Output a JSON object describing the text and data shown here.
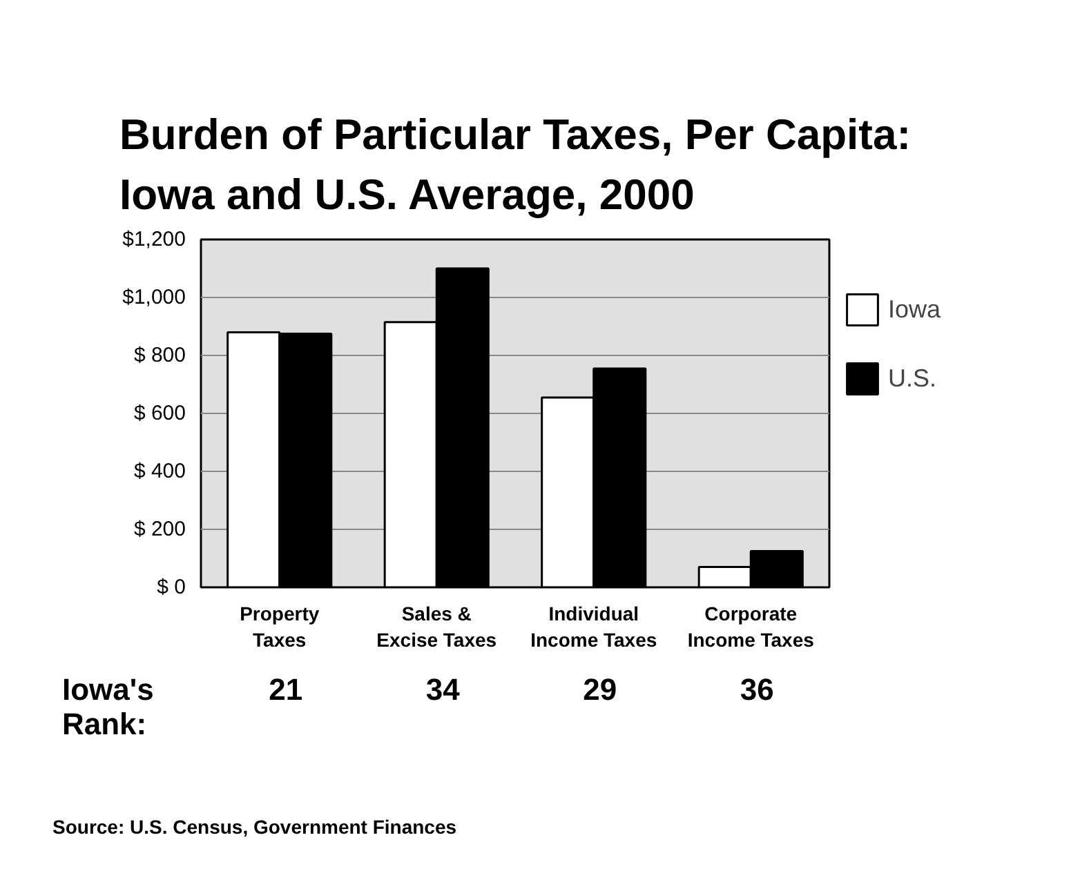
{
  "chart_data": {
    "type": "bar",
    "title": "Burden of Particular Taxes, Per Capita:\nIowa and U.S. Average, 2000",
    "categories": [
      "Property\nTaxes",
      "Sales &\nExcise Taxes",
      "Individual\nIncome Taxes",
      "Corporate\nIncome Taxes"
    ],
    "series": [
      {
        "name": "Iowa",
        "color": "#ffffff",
        "values": [
          880,
          915,
          655,
          70
        ]
      },
      {
        "name": "U.S.",
        "color": "#000000",
        "values": [
          875,
          1100,
          755,
          125
        ]
      }
    ],
    "ylim": [
      0,
      1200
    ],
    "yticks": [
      {
        "value": 0,
        "label": "$ 0"
      },
      {
        "value": 200,
        "label": "$ 200"
      },
      {
        "value": 400,
        "label": "$ 400"
      },
      {
        "value": 600,
        "label": "$ 600"
      },
      {
        "value": 800,
        "label": "$ 800"
      },
      {
        "value": 1000,
        "label": "$1,000"
      },
      {
        "value": 1200,
        "label": "$1,200"
      }
    ],
    "grid": "y",
    "legend": "right",
    "annotations": [
      "Iowa's\nRank:",
      "21",
      "34",
      "29",
      "36",
      "Source: U.S. Census, Government Finances"
    ]
  }
}
